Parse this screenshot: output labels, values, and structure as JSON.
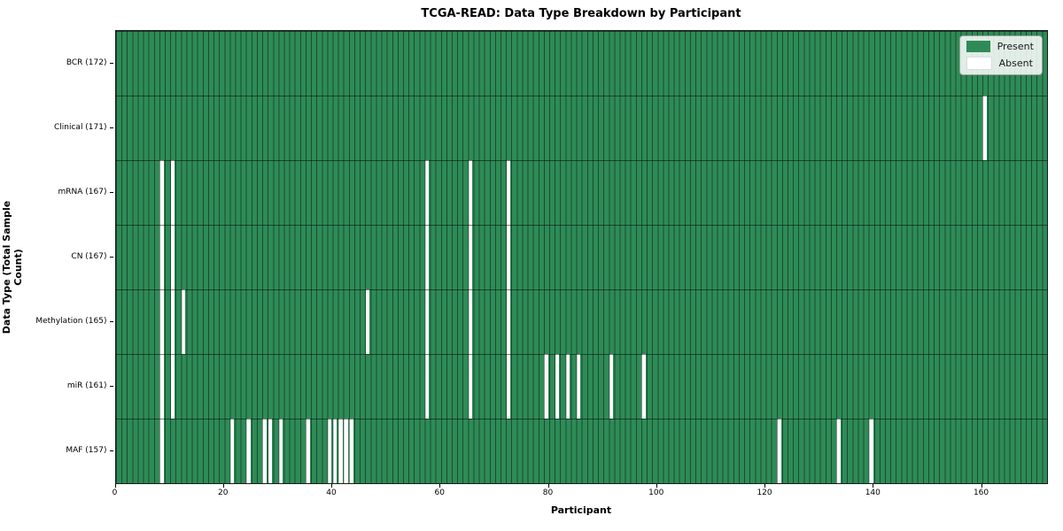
{
  "title": "TCGA-READ: Data Type Breakdown by Participant",
  "xlabel": "Participant",
  "ylabel": "Data Type (Total Sample Count)",
  "legend": {
    "present_label": "Present",
    "absent_label": "Absent"
  },
  "colors": {
    "present": "#2e8b57",
    "absent": "#ffffff",
    "absent_border": "#dddddd",
    "frame": "#1a1a1a"
  },
  "chart_data": {
    "type": "heatmap",
    "title": "TCGA-READ: Data Type Breakdown by Participant",
    "xlabel": "Participant",
    "ylabel": "Data Type (Total Sample Count)",
    "legend_entries": [
      "Present",
      "Absent"
    ],
    "legend_position": "upper right",
    "grid": true,
    "n_participants": 172,
    "x_ticks": [
      0,
      20,
      40,
      60,
      80,
      100,
      120,
      140,
      160
    ],
    "rows": [
      {
        "label": "BCR (172)",
        "data_type": "BCR",
        "total": 172,
        "absent_participants": []
      },
      {
        "label": "Clinical (171)",
        "data_type": "Clinical",
        "total": 171,
        "absent_participants": [
          160
        ]
      },
      {
        "label": "mRNA (167)",
        "data_type": "mRNA",
        "total": 167,
        "absent_participants": [
          8,
          10,
          57,
          65,
          72
        ]
      },
      {
        "label": "CN (167)",
        "data_type": "CN",
        "total": 167,
        "absent_participants": [
          8,
          10,
          57,
          65,
          72
        ]
      },
      {
        "label": "Methylation (165)",
        "data_type": "Methylation",
        "total": 165,
        "absent_participants": [
          8,
          10,
          12,
          46,
          57,
          65,
          72
        ]
      },
      {
        "label": "miR (161)",
        "data_type": "miR",
        "total": 161,
        "absent_participants": [
          8,
          10,
          57,
          65,
          72,
          79,
          81,
          83,
          85,
          91,
          97
        ]
      },
      {
        "label": "MAF (157)",
        "data_type": "MAF",
        "total": 157,
        "absent_participants": [
          8,
          21,
          24,
          27,
          28,
          30,
          35,
          39,
          40,
          41,
          42,
          43,
          122,
          133,
          139
        ]
      }
    ]
  }
}
